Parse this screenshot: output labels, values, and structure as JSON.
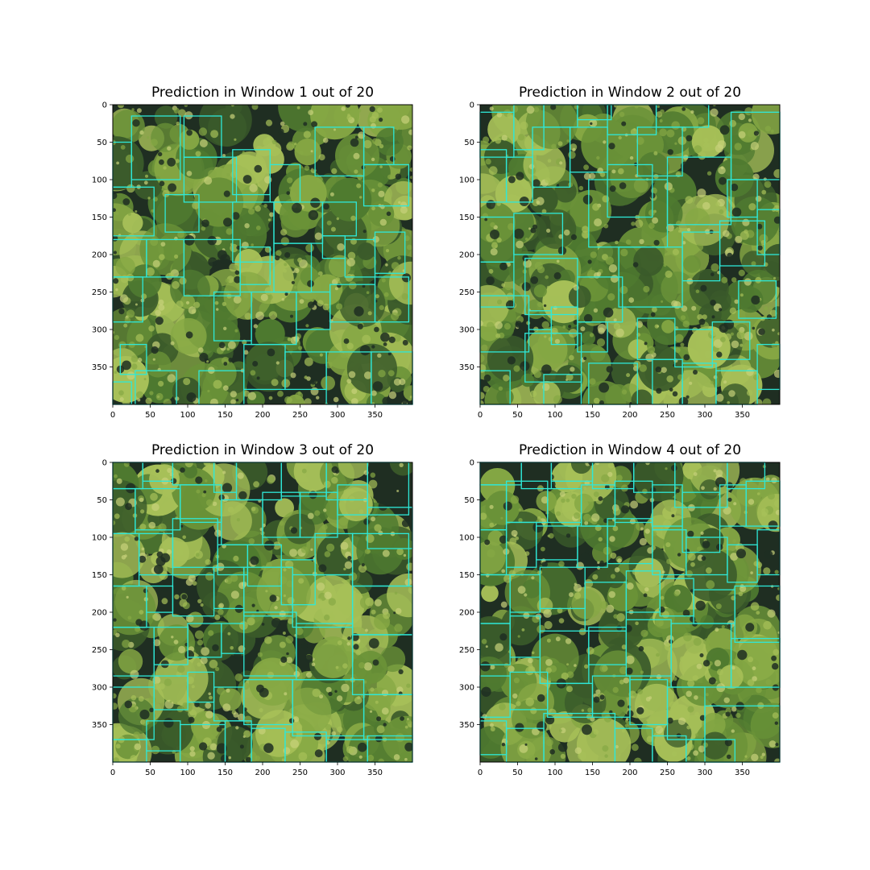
{
  "figure": {
    "background": "#ffffff",
    "box_color": "#2ee8d8",
    "canopy_palette": [
      "#1f2e22",
      "#3a5a2a",
      "#4f7a30",
      "#6a9238",
      "#86a844",
      "#a7c058",
      "#c7d27a"
    ],
    "axis_ticks": {
      "x": [
        "0",
        "50",
        "100",
        "150",
        "200",
        "250",
        "300",
        "350"
      ],
      "y": [
        "0",
        "50",
        "100",
        "150",
        "200",
        "250",
        "300",
        "350"
      ]
    },
    "axis_range": {
      "x": [
        0,
        400
      ],
      "y": [
        0,
        400
      ]
    }
  },
  "panels": [
    {
      "title": "Prediction in Window 1 out of 20",
      "seed": 11,
      "boxes": [
        [
          25,
          15,
          90,
          100
        ],
        [
          95,
          15,
          145,
          70
        ],
        [
          0,
          50,
          25,
          110
        ],
        [
          95,
          70,
          165,
          130
        ],
        [
          0,
          110,
          55,
          175
        ],
        [
          70,
          120,
          115,
          170
        ],
        [
          160,
          60,
          210,
          120
        ],
        [
          210,
          80,
          250,
          130
        ],
        [
          270,
          30,
          335,
          95
        ],
        [
          335,
          30,
          375,
          80
        ],
        [
          335,
          80,
          395,
          135
        ],
        [
          160,
          130,
          215,
          210
        ],
        [
          215,
          130,
          280,
          185
        ],
        [
          280,
          130,
          325,
          175
        ],
        [
          0,
          180,
          45,
          230
        ],
        [
          45,
          180,
          95,
          230
        ],
        [
          95,
          180,
          170,
          255
        ],
        [
          170,
          190,
          210,
          240
        ],
        [
          215,
          185,
          265,
          250
        ],
        [
          280,
          175,
          310,
          205
        ],
        [
          310,
          180,
          350,
          230
        ],
        [
          350,
          170,
          390,
          225
        ],
        [
          0,
          230,
          40,
          290
        ],
        [
          135,
          250,
          185,
          315
        ],
        [
          185,
          250,
          245,
          320
        ],
        [
          245,
          250,
          290,
          300
        ],
        [
          290,
          240,
          350,
          290
        ],
        [
          350,
          230,
          395,
          290
        ],
        [
          10,
          320,
          45,
          360
        ],
        [
          30,
          355,
          85,
          400
        ],
        [
          115,
          355,
          175,
          400
        ],
        [
          175,
          320,
          230,
          380
        ],
        [
          230,
          330,
          285,
          380
        ],
        [
          285,
          330,
          345,
          400
        ],
        [
          345,
          330,
          400,
          400
        ],
        [
          0,
          370,
          25,
          400
        ]
      ]
    },
    {
      "title": "Prediction in Window 2 out of 20",
      "seed": 23,
      "boxes": [
        [
          0,
          10,
          45,
          70
        ],
        [
          45,
          0,
          85,
          60
        ],
        [
          85,
          0,
          130,
          30
        ],
        [
          130,
          0,
          175,
          20
        ],
        [
          170,
          0,
          235,
          40
        ],
        [
          235,
          0,
          305,
          30
        ],
        [
          335,
          10,
          400,
          100
        ],
        [
          0,
          60,
          35,
          130
        ],
        [
          35,
          70,
          70,
          130
        ],
        [
          70,
          30,
          120,
          110
        ],
        [
          120,
          30,
          170,
          90
        ],
        [
          210,
          30,
          270,
          95
        ],
        [
          170,
          80,
          230,
          150
        ],
        [
          0,
          150,
          45,
          210
        ],
        [
          45,
          145,
          110,
          200
        ],
        [
          145,
          100,
          250,
          190
        ],
        [
          250,
          70,
          335,
          160
        ],
        [
          330,
          100,
          370,
          150
        ],
        [
          370,
          140,
          400,
          200
        ],
        [
          0,
          210,
          45,
          270
        ],
        [
          60,
          205,
          130,
          280
        ],
        [
          130,
          230,
          190,
          290
        ],
        [
          185,
          190,
          270,
          270
        ],
        [
          270,
          170,
          320,
          235
        ],
        [
          320,
          155,
          380,
          215
        ],
        [
          0,
          255,
          65,
          330
        ],
        [
          65,
          275,
          95,
          300
        ],
        [
          95,
          270,
          130,
          320
        ],
        [
          130,
          290,
          170,
          330
        ],
        [
          210,
          285,
          260,
          340
        ],
        [
          260,
          300,
          310,
          350
        ],
        [
          310,
          290,
          360,
          340
        ],
        [
          345,
          235,
          395,
          285
        ],
        [
          60,
          305,
          135,
          370
        ],
        [
          230,
          340,
          270,
          400
        ],
        [
          270,
          345,
          315,
          400
        ],
        [
          315,
          355,
          370,
          400
        ],
        [
          370,
          320,
          400,
          380
        ],
        [
          0,
          355,
          40,
          400
        ],
        [
          85,
          360,
          135,
          400
        ],
        [
          145,
          345,
          210,
          400
        ]
      ]
    },
    {
      "title": "Prediction in Window 3 out of 20",
      "seed": 37,
      "boxes": [
        [
          0,
          0,
          40,
          35
        ],
        [
          40,
          0,
          80,
          25
        ],
        [
          80,
          0,
          135,
          30
        ],
        [
          135,
          0,
          165,
          40
        ],
        [
          165,
          0,
          225,
          50
        ],
        [
          225,
          0,
          285,
          45
        ],
        [
          285,
          0,
          340,
          50
        ],
        [
          340,
          0,
          395,
          70
        ],
        [
          0,
          35,
          30,
          95
        ],
        [
          30,
          35,
          90,
          90
        ],
        [
          90,
          30,
          145,
          80
        ],
        [
          145,
          50,
          200,
          110
        ],
        [
          200,
          40,
          250,
          100
        ],
        [
          250,
          40,
          300,
          100
        ],
        [
          300,
          30,
          340,
          70
        ],
        [
          340,
          60,
          400,
          115
        ],
        [
          0,
          95,
          35,
          165
        ],
        [
          35,
          95,
          80,
          150
        ],
        [
          80,
          75,
          140,
          140
        ],
        [
          140,
          110,
          180,
          150
        ],
        [
          180,
          110,
          225,
          165
        ],
        [
          225,
          130,
          270,
          190
        ],
        [
          270,
          95,
          320,
          150
        ],
        [
          320,
          95,
          395,
          165
        ],
        [
          0,
          165,
          45,
          220
        ],
        [
          45,
          165,
          80,
          200
        ],
        [
          80,
          150,
          135,
          205
        ],
        [
          135,
          140,
          175,
          195
        ],
        [
          175,
          140,
          240,
          205
        ],
        [
          240,
          150,
          320,
          220
        ],
        [
          320,
          165,
          400,
          230
        ],
        [
          0,
          220,
          55,
          285
        ],
        [
          55,
          220,
          100,
          270
        ],
        [
          100,
          215,
          145,
          260
        ],
        [
          145,
          215,
          175,
          255
        ],
        [
          175,
          200,
          245,
          285
        ],
        [
          245,
          215,
          320,
          290
        ],
        [
          320,
          230,
          400,
          310
        ],
        [
          0,
          300,
          55,
          370
        ],
        [
          55,
          285,
          100,
          330
        ],
        [
          100,
          280,
          135,
          320
        ],
        [
          135,
          300,
          175,
          345
        ],
        [
          175,
          290,
          240,
          350
        ],
        [
          240,
          290,
          335,
          365
        ],
        [
          335,
          310,
          400,
          370
        ],
        [
          0,
          370,
          45,
          400
        ],
        [
          45,
          345,
          90,
          385
        ],
        [
          90,
          350,
          150,
          400
        ],
        [
          150,
          345,
          185,
          400
        ],
        [
          185,
          355,
          230,
          400
        ],
        [
          230,
          360,
          285,
          400
        ],
        [
          285,
          370,
          340,
          400
        ],
        [
          340,
          365,
          400,
          400
        ]
      ]
    },
    {
      "title": "Prediction in Window 4 out of 20",
      "seed": 41,
      "boxes": [
        [
          0,
          0,
          55,
          30
        ],
        [
          55,
          0,
          95,
          35
        ],
        [
          95,
          0,
          150,
          25
        ],
        [
          150,
          0,
          205,
          35
        ],
        [
          205,
          0,
          260,
          40
        ],
        [
          260,
          0,
          330,
          60
        ],
        [
          330,
          0,
          380,
          35
        ],
        [
          355,
          25,
          400,
          85
        ],
        [
          0,
          30,
          35,
          90
        ],
        [
          35,
          25,
          90,
          80
        ],
        [
          90,
          35,
          135,
          80
        ],
        [
          135,
          30,
          180,
          85
        ],
        [
          180,
          25,
          230,
          80
        ],
        [
          230,
          30,
          270,
          85
        ],
        [
          270,
          40,
          320,
          120
        ],
        [
          320,
          30,
          355,
          85
        ],
        [
          0,
          90,
          35,
          150
        ],
        [
          35,
          80,
          75,
          140
        ],
        [
          75,
          85,
          130,
          130
        ],
        [
          130,
          85,
          170,
          140
        ],
        [
          170,
          75,
          230,
          135
        ],
        [
          230,
          90,
          275,
          150
        ],
        [
          275,
          100,
          330,
          150
        ],
        [
          330,
          110,
          370,
          160
        ],
        [
          370,
          90,
          400,
          150
        ],
        [
          0,
          150,
          40,
          215
        ],
        [
          40,
          150,
          80,
          200
        ],
        [
          80,
          140,
          140,
          195
        ],
        [
          140,
          160,
          195,
          225
        ],
        [
          195,
          145,
          240,
          200
        ],
        [
          240,
          155,
          285,
          205
        ],
        [
          285,
          170,
          340,
          215
        ],
        [
          340,
          165,
          400,
          240
        ],
        [
          0,
          215,
          40,
          270
        ],
        [
          40,
          205,
          80,
          260
        ],
        [
          80,
          225,
          145,
          295
        ],
        [
          145,
          220,
          195,
          270
        ],
        [
          195,
          210,
          255,
          285
        ],
        [
          255,
          215,
          335,
          300
        ],
        [
          335,
          235,
          400,
          300
        ],
        [
          0,
          285,
          40,
          340
        ],
        [
          40,
          280,
          90,
          330
        ],
        [
          90,
          295,
          150,
          340
        ],
        [
          150,
          285,
          200,
          340
        ],
        [
          200,
          290,
          250,
          350
        ],
        [
          250,
          300,
          300,
          370
        ],
        [
          300,
          325,
          400,
          400
        ],
        [
          0,
          345,
          35,
          390
        ],
        [
          35,
          355,
          85,
          400
        ],
        [
          85,
          335,
          180,
          400
        ],
        [
          180,
          355,
          230,
          400
        ],
        [
          230,
          365,
          275,
          400
        ],
        [
          275,
          370,
          340,
          400
        ]
      ]
    }
  ]
}
